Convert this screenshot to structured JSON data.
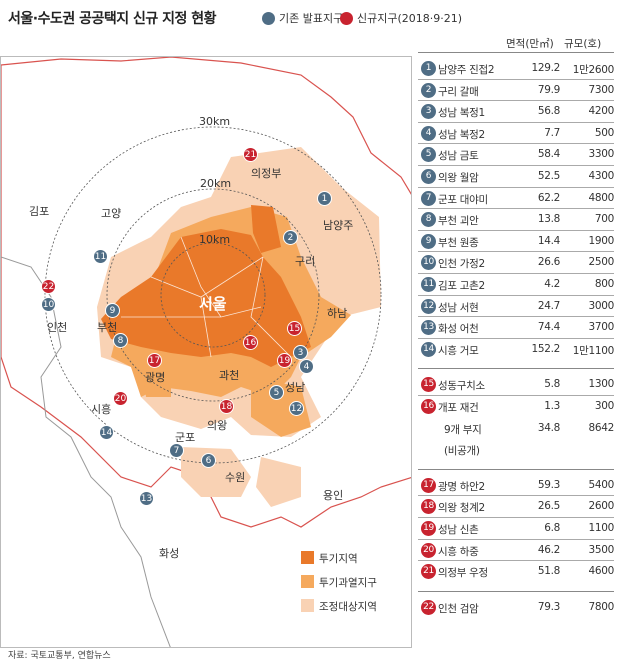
{
  "title": "서울·수도권 공공택지 신규 지정 현황",
  "legend_top": {
    "existing": {
      "label": "기존 발표지구",
      "color": "#4f6d85"
    },
    "new": {
      "label": "신규지구(2018·9·21)",
      "color": "#c8232f"
    }
  },
  "table": {
    "col_area": "면적(만㎡)",
    "col_size": "규모(호)",
    "groups": [
      {
        "rows": [
          {
            "num": "1",
            "name": "남양주 진접2",
            "area": "129.2",
            "size": "1만2600",
            "type": "existing"
          },
          {
            "num": "2",
            "name": "구리 갈매",
            "area": "79.9",
            "size": "7300",
            "type": "existing"
          },
          {
            "num": "3",
            "name": "성남 복정1",
            "area": "56.8",
            "size": "4200",
            "type": "existing"
          },
          {
            "num": "4",
            "name": "성남 복정2",
            "area": "7.7",
            "size": "500",
            "type": "existing"
          },
          {
            "num": "5",
            "name": "성남 금토",
            "area": "58.4",
            "size": "3300",
            "type": "existing"
          },
          {
            "num": "6",
            "name": "의왕 월암",
            "area": "52.5",
            "size": "4300",
            "type": "existing"
          },
          {
            "num": "7",
            "name": "군포 대야미",
            "area": "62.2",
            "size": "4800",
            "type": "existing"
          },
          {
            "num": "8",
            "name": "부천 괴안",
            "area": "13.8",
            "size": "700",
            "type": "existing"
          },
          {
            "num": "9",
            "name": "부천 원종",
            "area": "14.4",
            "size": "1900",
            "type": "existing"
          },
          {
            "num": "10",
            "name": "인천 가정2",
            "area": "26.6",
            "size": "2500",
            "type": "existing"
          },
          {
            "num": "11",
            "name": "김포 고촌2",
            "area": "4.2",
            "size": "800",
            "type": "existing"
          },
          {
            "num": "12",
            "name": "성남 서현",
            "area": "24.7",
            "size": "3000",
            "type": "existing"
          },
          {
            "num": "13",
            "name": "화성 어천",
            "area": "74.4",
            "size": "3700",
            "type": "existing"
          },
          {
            "num": "14",
            "name": "시흥 거모",
            "area": "152.2",
            "size": "1만1100",
            "type": "existing"
          }
        ]
      },
      {
        "rows": [
          {
            "num": "15",
            "name": "성동구치소",
            "area": "5.8",
            "size": "1300",
            "type": "new"
          },
          {
            "num": "16",
            "name": "개포 재건",
            "area": "1.3",
            "size": "300",
            "type": "new"
          },
          {
            "num": "",
            "name": "9개 부지",
            "area": "34.8",
            "size": "8642",
            "type": "none"
          },
          {
            "num": "",
            "name": "(비공개)",
            "area": "",
            "size": "",
            "type": "none"
          }
        ]
      },
      {
        "rows": [
          {
            "num": "17",
            "name": "광명 하안2",
            "area": "59.3",
            "size": "5400",
            "type": "new"
          },
          {
            "num": "18",
            "name": "의왕 청계2",
            "area": "26.5",
            "size": "2600",
            "type": "new"
          },
          {
            "num": "19",
            "name": "성남 신촌",
            "area": "6.8",
            "size": "1100",
            "type": "new"
          },
          {
            "num": "20",
            "name": "시흥 하중",
            "area": "46.2",
            "size": "3500",
            "type": "new"
          },
          {
            "num": "21",
            "name": "의정부 우정",
            "area": "51.8",
            "size": "4600",
            "type": "new"
          }
        ]
      },
      {
        "rows": [
          {
            "num": "22",
            "name": "인천 검암",
            "area": "79.3",
            "size": "7800",
            "type": "new"
          }
        ]
      }
    ]
  },
  "map": {
    "rings": {
      "r10": "10km",
      "r20": "20km",
      "r30": "30km"
    },
    "city_labels": {
      "seoul": "서울",
      "gimpo": "김포",
      "goyang": "고양",
      "uijeongbu": "의정부",
      "namyangju": "남양주",
      "guri": "구리",
      "hanam": "하남",
      "incheon": "인천",
      "bucheon": "부천",
      "gwangmyeong": "광명",
      "gwacheon": "과천",
      "seongnam": "성남",
      "siheung": "시흥",
      "gunpo": "군포",
      "uiwang": "의왕",
      "suwon": "수원",
      "yongin": "용인",
      "hwaseong": "화성"
    },
    "legend": {
      "zone1": {
        "label": "투기지역",
        "color": "#e9792a"
      },
      "zone2": {
        "label": "투기과열지구",
        "color": "#f5a95d"
      },
      "zone3": {
        "label": "조정대상지역",
        "color": "#f9d2b4"
      }
    }
  },
  "source": "자료: 국토교통부, 연합뉴스"
}
